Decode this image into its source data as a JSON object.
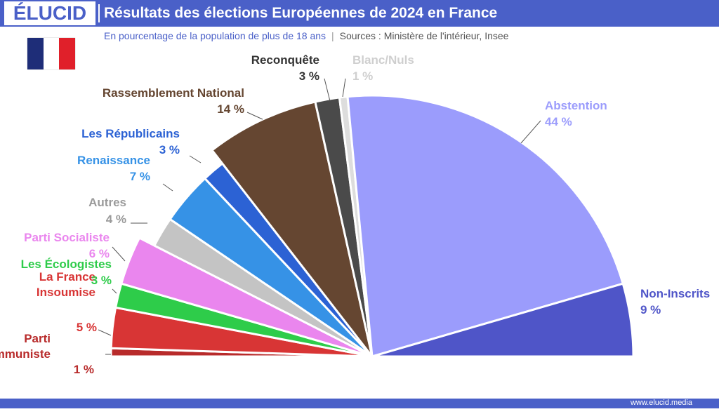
{
  "header": {
    "logo": "ÉLUCID",
    "title": "Résultats des élections Européennes de 2024 en France",
    "subtitle": "En pourcentage de la population de plus de 18 ans",
    "sources": "Sources : Ministère de l'intérieur, Insee"
  },
  "footer": {
    "url": "www.elucid.media"
  },
  "colors": {
    "brand": "#4a60c8",
    "flag_blue": "#1e2d78",
    "flag_white": "#ffffff",
    "flag_red": "#e0202a"
  },
  "chart_data": {
    "type": "pie",
    "subtype": "half-donut (semicircle), wedges starting left going clockwise",
    "title": "Résultats des élections Européennes de 2024 en France",
    "unit": "%",
    "slices": [
      {
        "label": "Parti Communiste",
        "value": 1,
        "value_label": "1 %",
        "color": "#b82b2b"
      },
      {
        "label": "La France Insoumise",
        "value": 5,
        "value_label": "5 %",
        "color": "#d83535"
      },
      {
        "label": "Les Écologistes",
        "value": 3,
        "value_label": "3 %",
        "color": "#2ecc4a"
      },
      {
        "label": "Parti Socialiste",
        "value": 6,
        "value_label": "6 %",
        "color": "#ea86ee"
      },
      {
        "label": "Autres",
        "value": 4,
        "value_label": "4 %",
        "color": "#c4c4c4"
      },
      {
        "label": "Renaissance",
        "value": 7,
        "value_label": "7 %",
        "color": "#3692e6"
      },
      {
        "label": "Les Républicains",
        "value": 3,
        "value_label": "3 %",
        "color": "#2c62d4"
      },
      {
        "label": "Rassemblement National",
        "value": 14,
        "value_label": "14 %",
        "color": "#654631"
      },
      {
        "label": "Reconquête",
        "value": 3,
        "value_label": "3 %",
        "color": "#4a4a4a"
      },
      {
        "label": "Blanc/Nuls",
        "value": 1,
        "value_label": "1 %",
        "color": "#dddddd"
      },
      {
        "label": "Abstention",
        "value": 44,
        "value_label": "44 %",
        "color": "#9b9cfc"
      },
      {
        "label": "Non-Inscrits",
        "value": 9,
        "value_label": "9 %",
        "color": "#4f55c8"
      }
    ]
  }
}
